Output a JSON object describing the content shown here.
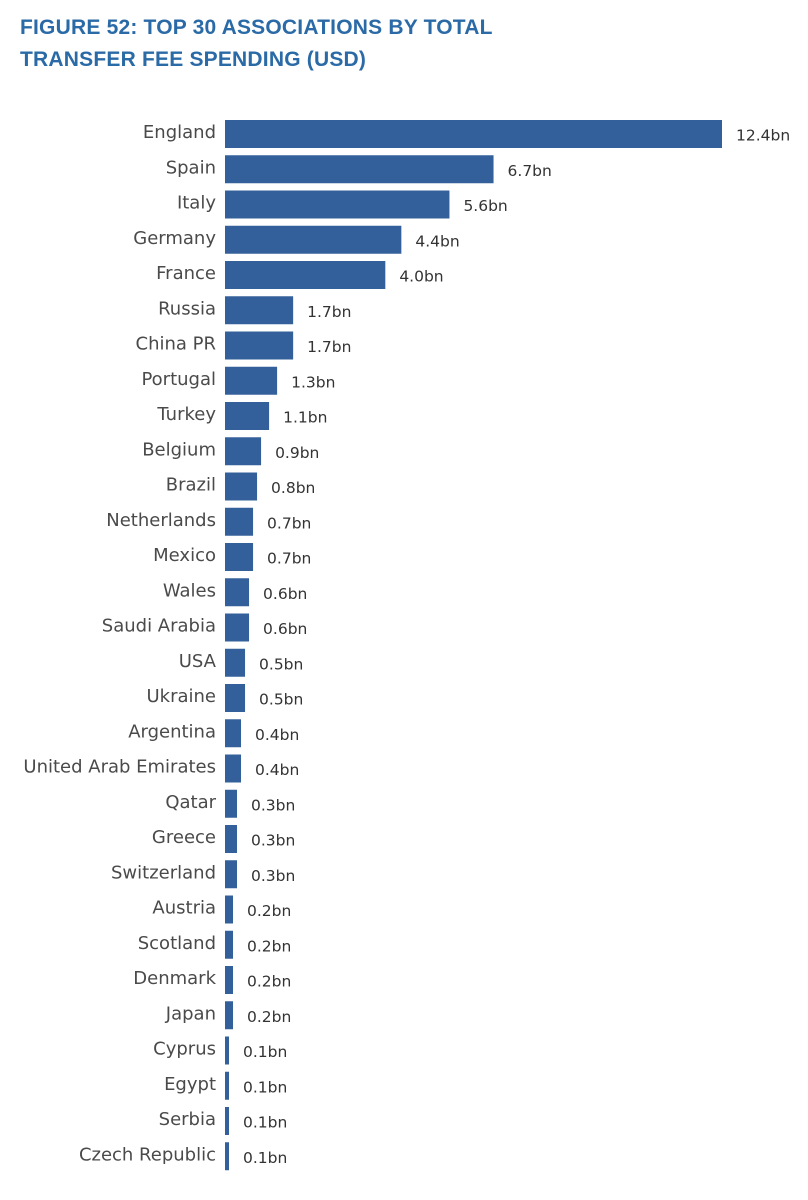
{
  "chart_data": {
    "type": "bar",
    "orientation": "horizontal",
    "title": "FIGURE 52: TOP 30 ASSOCIATIONS BY TOTAL TRANSFER FEE SPENDING (USD)",
    "title_lines": [
      "FIGURE 52: TOP 30 ASSOCIATIONS BY TOTAL",
      "TRANSFER FEE SPENDING (USD)"
    ],
    "xlabel": "",
    "ylabel": "",
    "categories": [
      "England",
      "Spain",
      "Italy",
      "Germany",
      "France",
      "Russia",
      "China PR",
      "Portugal",
      "Turkey",
      "Belgium",
      "Brazil",
      "Netherlands",
      "Mexico",
      "Wales",
      "Saudi Arabia",
      "USA",
      "Ukraine",
      "Argentina",
      "United Arab Emirates",
      "Qatar",
      "Greece",
      "Switzerland",
      "Austria",
      "Scotland",
      "Denmark",
      "Japan",
      "Cyprus",
      "Egypt",
      "Serbia",
      "Czech Republic"
    ],
    "values": [
      12.4,
      6.7,
      5.6,
      4.4,
      4.0,
      1.7,
      1.7,
      1.3,
      1.1,
      0.9,
      0.8,
      0.7,
      0.7,
      0.6,
      0.6,
      0.5,
      0.5,
      0.4,
      0.4,
      0.3,
      0.3,
      0.3,
      0.2,
      0.2,
      0.2,
      0.2,
      0.1,
      0.1,
      0.1,
      0.1
    ],
    "value_labels": [
      "12.4bn",
      "6.7bn",
      "5.6bn",
      "4.4bn",
      "4.0bn",
      "1.7bn",
      "1.7bn",
      "1.3bn",
      "1.1bn",
      "0.9bn",
      "0.8bn",
      "0.7bn",
      "0.7bn",
      "0.6bn",
      "0.6bn",
      "0.5bn",
      "0.5bn",
      "0.4bn",
      "0.4bn",
      "0.3bn",
      "0.3bn",
      "0.3bn",
      "0.2bn",
      "0.2bn",
      "0.2bn",
      "0.2bn",
      "0.1bn",
      "0.1bn",
      "0.1bn",
      "0.1bn"
    ],
    "unit": "bn",
    "xlim": [
      0,
      12.4
    ],
    "grid": false,
    "legend": "none",
    "bar_color": "#33609a"
  }
}
